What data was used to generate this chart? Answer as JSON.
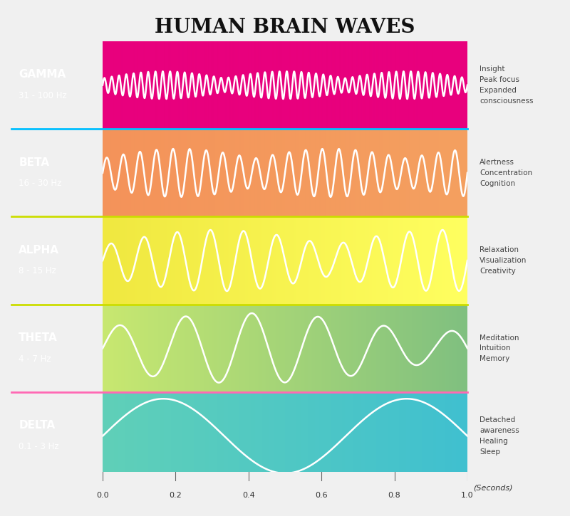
{
  "title": "HUMAN BRAIN WAVES",
  "title_fontsize": 20,
  "waves": [
    {
      "name": "GAMMA",
      "freq": "31 - 100 Hz",
      "frequency_hz": 50,
      "amplitude": 0.35,
      "description": "Insight\nPeak focus\nExpanded\nconsciousness",
      "bg_colors": [
        "#E8007D",
        "#E8007D"
      ],
      "label_bg": "#A0879A",
      "row": 0
    },
    {
      "name": "BETA",
      "freq": "16 - 30 Hz",
      "frequency_hz": 22,
      "amplitude": 0.55,
      "description": "Alertness\nConcentration\nCognition",
      "bg_colors": [
        "#F4A040",
        "#E8007D"
      ],
      "label_bg": "#A0909A",
      "row": 1
    },
    {
      "name": "ALPHA",
      "freq": "8 - 15 Hz",
      "frequency_hz": 11,
      "amplitude": 0.7,
      "description": "Relaxation\nVisualization\nCreativity",
      "bg_colors": [
        "#FFFF00",
        "#F4A040"
      ],
      "label_bg": "#A09890",
      "row": 2
    },
    {
      "name": "THETA",
      "freq": "4 - 7 Hz",
      "frequency_hz": 5.5,
      "amplitude": 0.8,
      "description": "Meditation\nIntuition\nMemory",
      "bg_colors": [
        "#80D080",
        "#FFFF00"
      ],
      "label_bg": "#90A090",
      "row": 3
    },
    {
      "name": "DELTA",
      "freq": "0.1 - 3 Hz",
      "frequency_hz": 1.5,
      "amplitude": 0.85,
      "description": "Detached\nawareness\nHealing\nSleep",
      "bg_colors": [
        "#40C0C0",
        "#80D080"
      ],
      "label_bg": "#80A0A8",
      "row": 4
    }
  ],
  "xlabel": "(Seconds)",
  "xticks": [
    0.0,
    0.2,
    0.4,
    0.6,
    0.8,
    1.0
  ],
  "separator_colors": [
    "#00BFFF",
    "#00BFFF",
    "#CCDD00",
    "#CCDD00",
    "#FF69B4"
  ],
  "fig_bg": "#F0F0F0",
  "wave_color": "#FFFFFF",
  "wave_linewidth": 1.8
}
